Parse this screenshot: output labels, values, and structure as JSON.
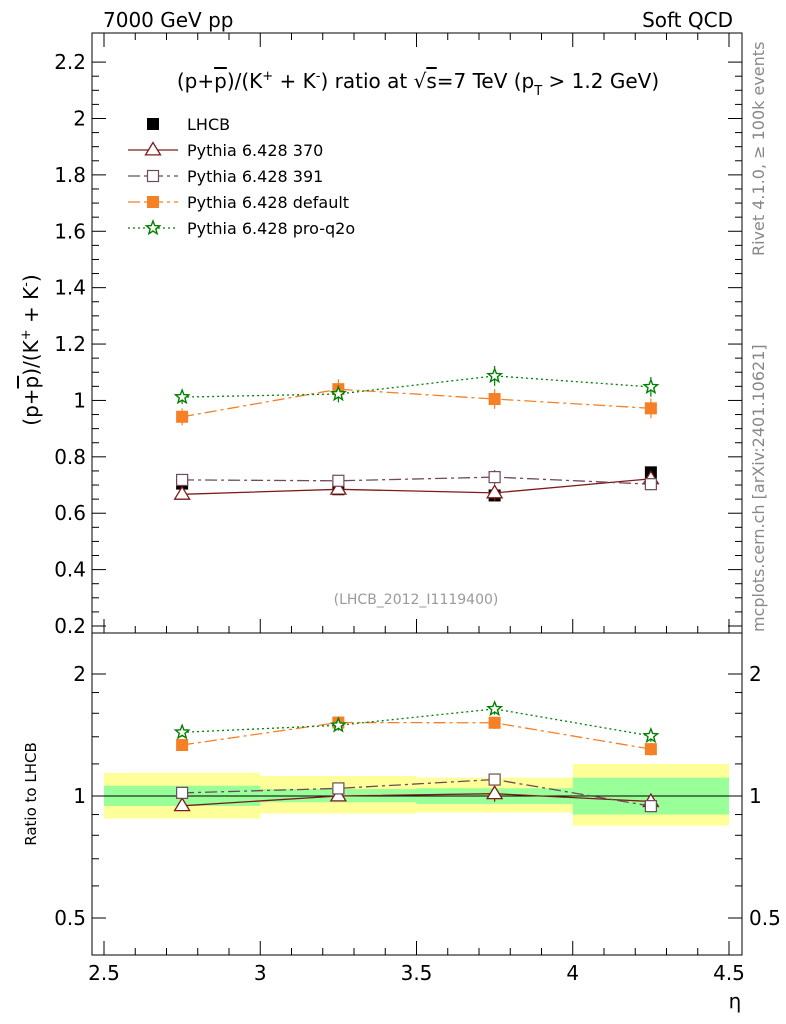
{
  "header": {
    "left": "7000 GeV pp",
    "right": "Soft QCD",
    "side_top": "Rivet 4.1.0, ≥ 100k events",
    "side_bottom": "mcplots.cern.ch [arXiv:2401.10621]"
  },
  "chart_data": {
    "type": "scatter",
    "title_parts": {
      "a": "(p+",
      "pbar": "p",
      "b": ")/(K",
      "plus": "+",
      "c": " + K",
      "minus": "-",
      "d": ") ratio at ",
      "root": "√",
      "s": "s",
      "e": "=7 TeV (p",
      "T": "T",
      "f": " > 1.2 GeV)"
    },
    "ylabel_parts": {
      "a": "(p+",
      "pbar": "p",
      "b": ")/(K",
      "plus": "+",
      "c": " + K",
      "minus": "-",
      "d": ")"
    },
    "xlabel": "η",
    "ratio_ylabel": "Ratio to LHCB",
    "analysis_id": "(LHCB_2012_I1119400)",
    "x": [
      2.75,
      3.25,
      3.75,
      4.25
    ],
    "bins": [
      [
        2.5,
        3.0
      ],
      [
        3.0,
        3.5
      ],
      [
        3.5,
        4.0
      ],
      [
        4.0,
        4.5
      ]
    ],
    "xlim": [
      2.5,
      4.5
    ],
    "ylim": [
      0.2,
      2.25
    ],
    "x_ticks": [
      "2.5",
      "3",
      "3.5",
      "4",
      "4.5"
    ],
    "y_ticks": [
      "0.2",
      "0.4",
      "0.6",
      "0.8",
      "1",
      "1.2",
      "1.4",
      "1.6",
      "1.8",
      "2",
      "2.2"
    ],
    "ratio_ylim": [
      0.4,
      2.4
    ],
    "ratio_ticks": [
      "0.5",
      "1",
      "2"
    ],
    "series": [
      {
        "name": "LHCB",
        "marker": "square-filled",
        "color": "#000000",
        "dash": "none",
        "is_data": true,
        "values": [
          0.705,
          0.685,
          0.663,
          0.745
        ]
      },
      {
        "name": "Pythia 6.428 370",
        "marker": "triangle-open",
        "color": "#7f1a1a",
        "dash": "solid",
        "values": [
          0.667,
          0.685,
          0.672,
          0.722
        ],
        "errors": [
          0.012,
          0.012,
          0.03,
          0.015
        ],
        "ratio": [
          0.946,
          1.0,
          1.013,
          0.969
        ]
      },
      {
        "name": "Pythia 6.428 391",
        "marker": "square-open",
        "color": "#6e4a5a",
        "dash": "dashdot",
        "values": [
          0.718,
          0.715,
          0.728,
          0.703
        ],
        "errors": [
          0.012,
          0.012,
          0.025,
          0.02
        ],
        "ratio": [
          1.018,
          1.044,
          1.098,
          0.944
        ]
      },
      {
        "name": "Pythia 6.428 default",
        "marker": "square-filled",
        "color": "#f58025",
        "dash": "dashdot",
        "values": [
          0.942,
          1.04,
          1.005,
          0.972
        ],
        "errors": [
          0.03,
          0.035,
          0.035,
          0.035
        ],
        "ratio": [
          1.336,
          1.518,
          1.516,
          1.305
        ]
      },
      {
        "name": "Pythia 6.428 pro-q2o",
        "marker": "star-open",
        "color": "#008000",
        "dash": "dotted",
        "values": [
          1.012,
          1.023,
          1.087,
          1.048
        ],
        "errors": [
          0.025,
          0.03,
          0.035,
          0.035
        ],
        "ratio": [
          1.436,
          1.494,
          1.64,
          1.407
        ]
      }
    ],
    "data_bands": {
      "inner": [
        [
          0.945,
          1.06
        ],
        [
          0.965,
          1.04
        ],
        [
          0.955,
          1.045
        ],
        [
          0.9,
          1.11
        ]
      ],
      "outer": [
        [
          0.88,
          1.14
        ],
        [
          0.905,
          1.12
        ],
        [
          0.91,
          1.11
        ],
        [
          0.845,
          1.2
        ]
      ]
    }
  }
}
